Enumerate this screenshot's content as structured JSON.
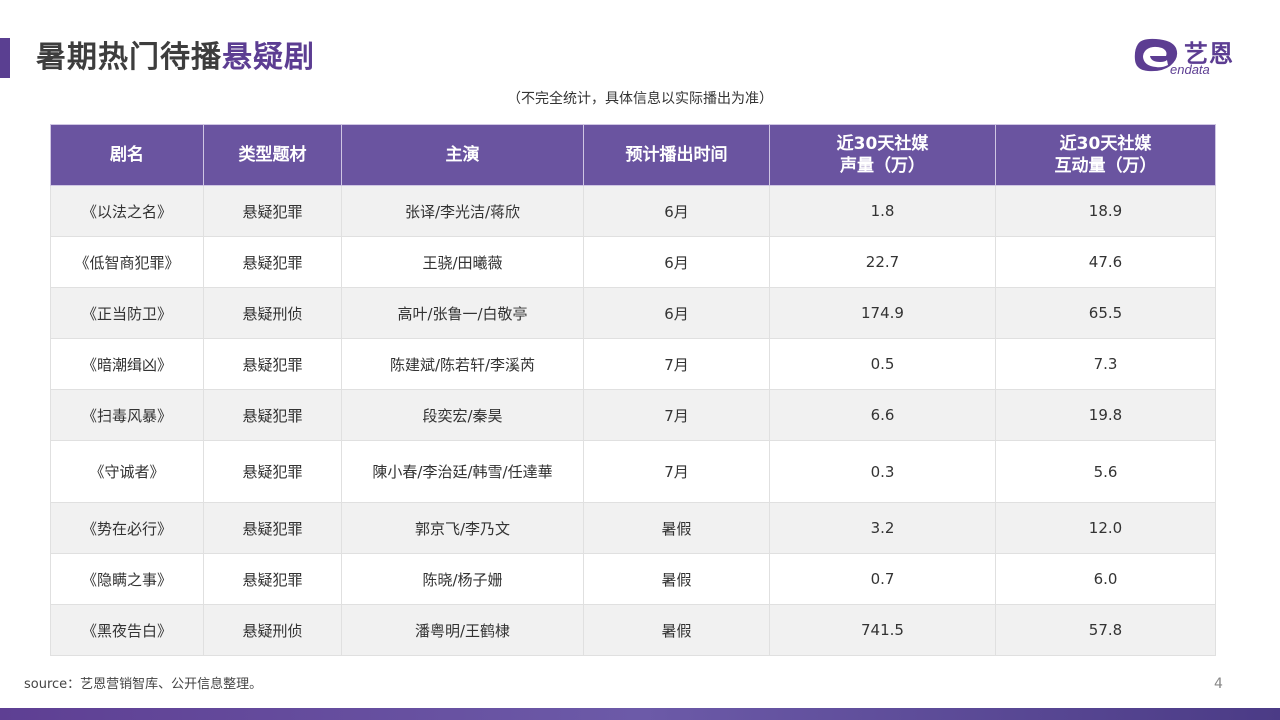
{
  "title": {
    "main": "暑期热门待播",
    "accent": "悬疑剧"
  },
  "logo": {
    "cn": "艺恩",
    "en": "endata",
    "color": "#5c3d92"
  },
  "note": "（不完全统计，具体信息以实际播出为准）",
  "table": {
    "headers": [
      {
        "line1": "剧名",
        "line2": ""
      },
      {
        "line1": "类型题材",
        "line2": ""
      },
      {
        "line1": "主演",
        "line2": ""
      },
      {
        "line1": "预计播出时间",
        "line2": ""
      },
      {
        "line1": "近30天社媒",
        "line2": "声量（万）"
      },
      {
        "line1": "近30天社媒",
        "line2": "互动量（万）"
      }
    ],
    "rows": [
      [
        "《以法之名》",
        "悬疑犯罪",
        "张译/李光洁/蒋欣",
        "6月",
        "1.8",
        "18.9"
      ],
      [
        "《低智商犯罪》",
        "悬疑犯罪",
        "王骁/田曦薇",
        "6月",
        "22.7",
        "47.6"
      ],
      [
        "《正当防卫》",
        "悬疑刑侦",
        "高叶/张鲁一/白敬亭",
        "6月",
        "174.9",
        "65.5"
      ],
      [
        "《暗潮缉凶》",
        "悬疑犯罪",
        "陈建斌/陈若轩/李溪芮",
        "7月",
        "0.5",
        "7.3"
      ],
      [
        "《扫毒风暴》",
        "悬疑犯罪",
        "段奕宏/秦昊",
        "7月",
        "6.6",
        "19.8"
      ],
      [
        "《守诚者》",
        "悬疑犯罪",
        "陳小春/李治廷/韩雪/任達華",
        "7月",
        "0.3",
        "5.6"
      ],
      [
        "《势在必行》",
        "悬疑犯罪",
        "郭京飞/李乃文",
        "暑假",
        "3.2",
        "12.0"
      ],
      [
        "《隐瞒之事》",
        "悬疑犯罪",
        "陈晓/杨子姗",
        "暑假",
        "0.7",
        "6.0"
      ],
      [
        "《黑夜告白》",
        "悬疑刑侦",
        "潘粤明/王鹤棣",
        "暑假",
        "741.5",
        "57.8"
      ]
    ]
  },
  "source": "source：艺恩营销智库、公开信息整理。",
  "page_number": "4",
  "colors": {
    "accent": "#5c3d92",
    "header_bg": "#6a54a0"
  }
}
